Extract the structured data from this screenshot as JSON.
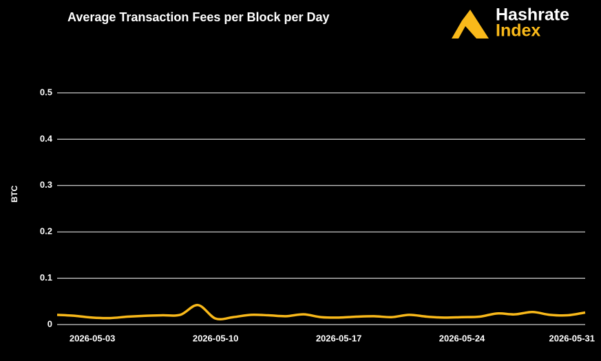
{
  "chart_data": {
    "type": "line",
    "title": "Average Transaction Fees per Block per Day",
    "brand": [
      "Hashrate",
      "Index"
    ],
    "y_label": "BTC",
    "x": [
      "2026-05-01",
      "2026-05-02",
      "2026-05-03",
      "2026-05-04",
      "2026-05-05",
      "2026-05-06",
      "2026-05-07",
      "2026-05-08",
      "2026-05-09",
      "2026-05-10",
      "2026-05-11",
      "2026-05-12",
      "2026-05-13",
      "2026-05-14",
      "2026-05-15",
      "2026-05-16",
      "2026-05-17",
      "2026-05-18",
      "2026-05-19",
      "2026-05-20",
      "2026-05-21",
      "2026-05-22",
      "2026-05-23",
      "2026-05-24",
      "2026-05-25",
      "2026-05-26",
      "2026-05-27",
      "2026-05-28",
      "2026-05-29",
      "2026-05-30",
      "2026-05-31"
    ],
    "series": [
      {
        "name": "BTC",
        "color": "#f9b91a",
        "values": [
          0.021,
          0.019,
          0.015,
          0.014,
          0.017,
          0.019,
          0.02,
          0.021,
          0.042,
          0.013,
          0.016,
          0.021,
          0.02,
          0.018,
          0.022,
          0.016,
          0.015,
          0.017,
          0.018,
          0.016,
          0.021,
          0.017,
          0.015,
          0.016,
          0.017,
          0.024,
          0.022,
          0.027,
          0.021,
          0.02,
          0.026
        ]
      }
    ],
    "xlim": [
      "2026-05-01",
      "2026-05-31"
    ],
    "xticks": [
      "2026-05-03",
      "2026-05-10",
      "2026-05-17",
      "2026-05-24",
      "2026-05-31"
    ],
    "ylim": [
      0,
      0.5
    ],
    "yticks": [
      0.0,
      0.1,
      0.2,
      0.3,
      0.4,
      0.5
    ],
    "grid": true
  }
}
